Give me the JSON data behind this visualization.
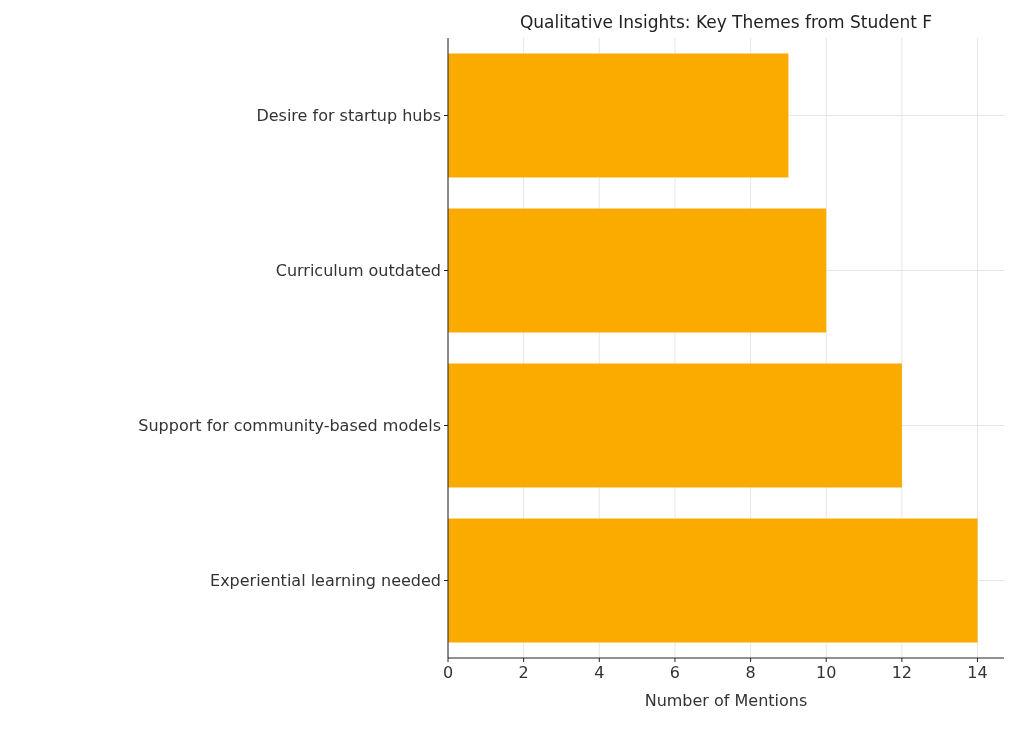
{
  "chart_data": {
    "type": "bar",
    "orientation": "horizontal",
    "title": "Qualitative Insights: Key Themes from Student F",
    "xlabel": "Number of Mentions",
    "categories": [
      "Desire for startup hubs",
      "Curriculum outdated",
      "Support for community-based models",
      "Experiential learning needed"
    ],
    "values": [
      9,
      10,
      12,
      14
    ],
    "color": "#fbab00",
    "xlim": [
      0,
      14.7
    ],
    "xticks": [
      0,
      2,
      4,
      6,
      8,
      10,
      12,
      14
    ],
    "grid": true
  }
}
